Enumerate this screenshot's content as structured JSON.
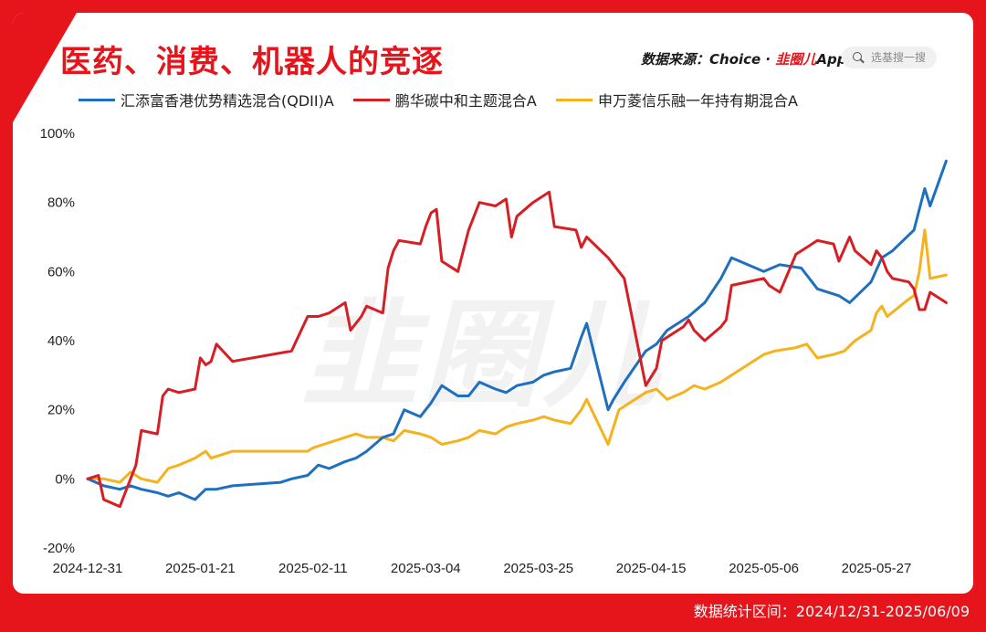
{
  "header": {
    "title": "医药、消费、机器人的竞逐",
    "source_prefix": "数据来源：Choice · ",
    "source_brand": "韭圈儿",
    "source_suffix": "App",
    "search_placeholder": "选基搜一搜"
  },
  "footer": {
    "period": "数据统计区间：2024/12/31-2025/06/09"
  },
  "watermark": "韭圈儿",
  "colors": {
    "frame": "#e6141b",
    "blue": "#1f6fc0",
    "red": "#d81e25",
    "yellow": "#f5b21c"
  },
  "chart_data": {
    "type": "line",
    "title": "医药、消费、机器人的竞逐",
    "xlabel": "",
    "ylabel": "",
    "ylim": [
      -20,
      100
    ],
    "yticks": [
      -20,
      0,
      20,
      40,
      60,
      80,
      100
    ],
    "ytick_labels": [
      "-20%",
      "0%",
      "20%",
      "40%",
      "60%",
      "80%",
      "100%"
    ],
    "xtick_labels": [
      "2024-12-31",
      "2025-01-21",
      "2025-02-11",
      "2025-03-04",
      "2025-03-25",
      "2025-04-15",
      "2025-05-06",
      "2025-05-27"
    ],
    "x_start": "2024-12-31",
    "x_end": "2025-06-09",
    "grid": false,
    "legend_position": "top",
    "series": [
      {
        "name": "汇添富香港优势精选混合(QDII)A",
        "color": "#1f6fc0",
        "points": [
          [
            "2024-12-31",
            0
          ],
          [
            "2025-01-03",
            -2
          ],
          [
            "2025-01-06",
            -3
          ],
          [
            "2025-01-08",
            -2
          ],
          [
            "2025-01-10",
            -3
          ],
          [
            "2025-01-13",
            -4
          ],
          [
            "2025-01-15",
            -5
          ],
          [
            "2025-01-17",
            -4
          ],
          [
            "2025-01-20",
            -6
          ],
          [
            "2025-01-22",
            -3
          ],
          [
            "2025-01-24",
            -3
          ],
          [
            "2025-01-27",
            -2
          ],
          [
            "2025-02-05",
            -1
          ],
          [
            "2025-02-07",
            0
          ],
          [
            "2025-02-10",
            1
          ],
          [
            "2025-02-12",
            4
          ],
          [
            "2025-02-14",
            3
          ],
          [
            "2025-02-17",
            5
          ],
          [
            "2025-02-19",
            6
          ],
          [
            "2025-02-21",
            8
          ],
          [
            "2025-02-24",
            12
          ],
          [
            "2025-02-26",
            13
          ],
          [
            "2025-02-28",
            20
          ],
          [
            "2025-03-03",
            18
          ],
          [
            "2025-03-05",
            22
          ],
          [
            "2025-03-07",
            27
          ],
          [
            "2025-03-10",
            24
          ],
          [
            "2025-03-12",
            24
          ],
          [
            "2025-03-14",
            28
          ],
          [
            "2025-03-17",
            26
          ],
          [
            "2025-03-19",
            25
          ],
          [
            "2025-03-21",
            27
          ],
          [
            "2025-03-24",
            28
          ],
          [
            "2025-03-26",
            30
          ],
          [
            "2025-03-28",
            31
          ],
          [
            "2025-03-31",
            32
          ],
          [
            "2025-04-02",
            41
          ],
          [
            "2025-04-03",
            45
          ],
          [
            "2025-04-07",
            20
          ],
          [
            "2025-04-08",
            23
          ],
          [
            "2025-04-10",
            28
          ],
          [
            "2025-04-14",
            37
          ],
          [
            "2025-04-16",
            39
          ],
          [
            "2025-04-18",
            43
          ],
          [
            "2025-04-22",
            47
          ],
          [
            "2025-04-25",
            51
          ],
          [
            "2025-04-28",
            58
          ],
          [
            "2025-04-30",
            64
          ],
          [
            "2025-05-06",
            60
          ],
          [
            "2025-05-09",
            62
          ],
          [
            "2025-05-13",
            61
          ],
          [
            "2025-05-16",
            55
          ],
          [
            "2025-05-20",
            53
          ],
          [
            "2025-05-22",
            51
          ],
          [
            "2025-05-26",
            57
          ],
          [
            "2025-05-28",
            64
          ],
          [
            "2025-05-30",
            66
          ],
          [
            "2025-06-03",
            72
          ],
          [
            "2025-06-05",
            84
          ],
          [
            "2025-06-06",
            79
          ],
          [
            "2025-06-09",
            92
          ]
        ]
      },
      {
        "name": "鹏华碳中和主题混合A",
        "color": "#d81e25",
        "points": [
          [
            "2024-12-31",
            0
          ],
          [
            "2025-01-02",
            1
          ],
          [
            "2025-01-03",
            -6
          ],
          [
            "2025-01-06",
            -8
          ],
          [
            "2025-01-07",
            -4
          ],
          [
            "2025-01-09",
            4
          ],
          [
            "2025-01-10",
            14
          ],
          [
            "2025-01-13",
            13
          ],
          [
            "2025-01-14",
            24
          ],
          [
            "2025-01-15",
            26
          ],
          [
            "2025-01-17",
            25
          ],
          [
            "2025-01-20",
            26
          ],
          [
            "2025-01-21",
            35
          ],
          [
            "2025-01-22",
            33
          ],
          [
            "2025-01-23",
            34
          ],
          [
            "2025-01-24",
            39
          ],
          [
            "2025-01-27",
            34
          ],
          [
            "2025-02-07",
            37
          ],
          [
            "2025-02-10",
            47
          ],
          [
            "2025-02-12",
            47
          ],
          [
            "2025-02-14",
            48
          ],
          [
            "2025-02-17",
            51
          ],
          [
            "2025-02-18",
            43
          ],
          [
            "2025-02-20",
            47
          ],
          [
            "2025-02-21",
            50
          ],
          [
            "2025-02-24",
            48
          ],
          [
            "2025-02-25",
            61
          ],
          [
            "2025-02-26",
            66
          ],
          [
            "2025-02-27",
            69
          ],
          [
            "2025-03-03",
            68
          ],
          [
            "2025-03-04",
            73
          ],
          [
            "2025-03-05",
            77
          ],
          [
            "2025-03-06",
            78
          ],
          [
            "2025-03-07",
            63
          ],
          [
            "2025-03-10",
            60
          ],
          [
            "2025-03-11",
            66
          ],
          [
            "2025-03-12",
            72
          ],
          [
            "2025-03-14",
            80
          ],
          [
            "2025-03-17",
            79
          ],
          [
            "2025-03-19",
            81
          ],
          [
            "2025-03-20",
            70
          ],
          [
            "2025-03-21",
            76
          ],
          [
            "2025-03-24",
            80
          ],
          [
            "2025-03-26",
            82
          ],
          [
            "2025-03-27",
            83
          ],
          [
            "2025-03-28",
            73
          ],
          [
            "2025-04-01",
            72
          ],
          [
            "2025-04-02",
            67
          ],
          [
            "2025-04-03",
            70
          ],
          [
            "2025-04-07",
            64
          ],
          [
            "2025-04-09",
            60
          ],
          [
            "2025-04-10",
            58
          ],
          [
            "2025-04-14",
            27
          ],
          [
            "2025-04-16",
            32
          ],
          [
            "2025-04-17",
            40
          ],
          [
            "2025-04-21",
            44
          ],
          [
            "2025-04-22",
            46
          ],
          [
            "2025-04-23",
            43
          ],
          [
            "2025-04-25",
            40
          ],
          [
            "2025-04-28",
            44
          ],
          [
            "2025-04-29",
            46
          ],
          [
            "2025-04-30",
            56
          ],
          [
            "2025-05-06",
            58
          ],
          [
            "2025-05-07",
            56
          ],
          [
            "2025-05-09",
            54
          ],
          [
            "2025-05-12",
            65
          ],
          [
            "2025-05-14",
            67
          ],
          [
            "2025-05-16",
            69
          ],
          [
            "2025-05-19",
            68
          ],
          [
            "2025-05-20",
            63
          ],
          [
            "2025-05-22",
            70
          ],
          [
            "2025-05-23",
            66
          ],
          [
            "2025-05-26",
            62
          ],
          [
            "2025-05-27",
            66
          ],
          [
            "2025-05-28",
            64
          ],
          [
            "2025-05-29",
            60
          ],
          [
            "2025-05-30",
            58
          ],
          [
            "2025-06-02",
            57
          ],
          [
            "2025-06-03",
            55
          ],
          [
            "2025-06-04",
            49
          ],
          [
            "2025-06-05",
            49
          ],
          [
            "2025-06-06",
            54
          ],
          [
            "2025-06-09",
            51
          ]
        ]
      },
      {
        "name": "申万菱信乐融一年持有期混合A",
        "color": "#f5b21c",
        "points": [
          [
            "2024-12-31",
            0
          ],
          [
            "2025-01-03",
            0
          ],
          [
            "2025-01-06",
            -1
          ],
          [
            "2025-01-08",
            2
          ],
          [
            "2025-01-10",
            0
          ],
          [
            "2025-01-13",
            -1
          ],
          [
            "2025-01-15",
            3
          ],
          [
            "2025-01-17",
            4
          ],
          [
            "2025-01-20",
            6
          ],
          [
            "2025-01-21",
            7
          ],
          [
            "2025-01-22",
            8
          ],
          [
            "2025-01-23",
            6
          ],
          [
            "2025-01-27",
            8
          ],
          [
            "2025-02-07",
            8
          ],
          [
            "2025-02-10",
            8
          ],
          [
            "2025-02-11",
            9
          ],
          [
            "2025-02-13",
            10
          ],
          [
            "2025-02-17",
            12
          ],
          [
            "2025-02-19",
            13
          ],
          [
            "2025-02-21",
            12
          ],
          [
            "2025-02-24",
            12
          ],
          [
            "2025-02-26",
            11
          ],
          [
            "2025-02-28",
            14
          ],
          [
            "2025-03-03",
            13
          ],
          [
            "2025-03-05",
            12
          ],
          [
            "2025-03-07",
            10
          ],
          [
            "2025-03-10",
            11
          ],
          [
            "2025-03-12",
            12
          ],
          [
            "2025-03-14",
            14
          ],
          [
            "2025-03-17",
            13
          ],
          [
            "2025-03-19",
            15
          ],
          [
            "2025-03-21",
            16
          ],
          [
            "2025-03-24",
            17
          ],
          [
            "2025-03-26",
            18
          ],
          [
            "2025-03-28",
            17
          ],
          [
            "2025-03-31",
            16
          ],
          [
            "2025-04-02",
            20
          ],
          [
            "2025-04-03",
            23
          ],
          [
            "2025-04-07",
            10
          ],
          [
            "2025-04-09",
            20
          ],
          [
            "2025-04-11",
            22
          ],
          [
            "2025-04-14",
            25
          ],
          [
            "2025-04-16",
            26
          ],
          [
            "2025-04-18",
            23
          ],
          [
            "2025-04-21",
            25
          ],
          [
            "2025-04-23",
            27
          ],
          [
            "2025-04-25",
            26
          ],
          [
            "2025-04-28",
            28
          ],
          [
            "2025-04-30",
            30
          ],
          [
            "2025-05-06",
            36
          ],
          [
            "2025-05-08",
            37
          ],
          [
            "2025-05-12",
            38
          ],
          [
            "2025-05-14",
            39
          ],
          [
            "2025-05-16",
            35
          ],
          [
            "2025-05-19",
            36
          ],
          [
            "2025-05-21",
            37
          ],
          [
            "2025-05-23",
            40
          ],
          [
            "2025-05-26",
            43
          ],
          [
            "2025-05-27",
            48
          ],
          [
            "2025-05-28",
            50
          ],
          [
            "2025-05-29",
            47
          ],
          [
            "2025-06-02",
            52
          ],
          [
            "2025-06-03",
            53
          ],
          [
            "2025-06-04",
            60
          ],
          [
            "2025-06-05",
            72
          ],
          [
            "2025-06-06",
            58
          ],
          [
            "2025-06-09",
            59
          ]
        ]
      }
    ]
  }
}
